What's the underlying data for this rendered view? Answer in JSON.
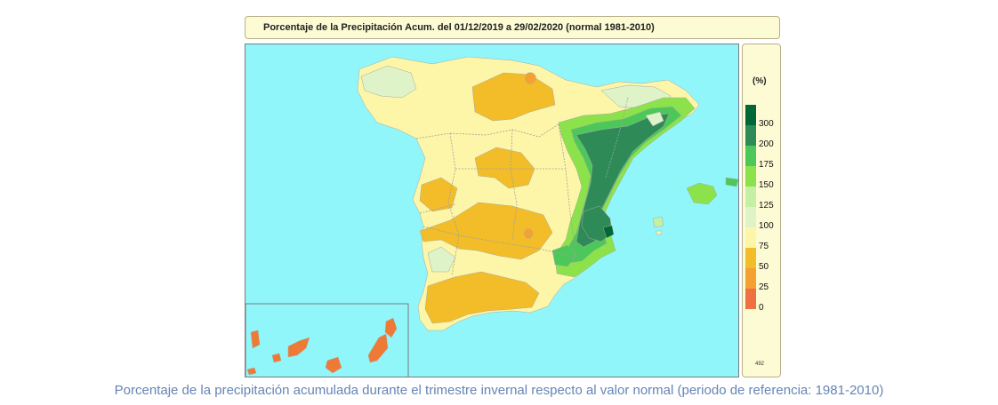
{
  "title": "Porcentaje de la Precipitación Acum. del 01/12/2019 a  29/02/2020  (normal 1981-2010)",
  "legend": {
    "unit": "(%)",
    "levels": [
      {
        "label": "300",
        "color": "#006837"
      },
      {
        "label": "200",
        "color": "#2e8b57"
      },
      {
        "label": "175",
        "color": "#4cc85a"
      },
      {
        "label": "150",
        "color": "#8ce24a"
      },
      {
        "label": "125",
        "color": "#c4f0a6"
      },
      {
        "label": "100",
        "color": "#dff3c9"
      },
      {
        "label": "75",
        "color": "#fdf6a8"
      },
      {
        "label": "50",
        "color": "#f2bd28"
      },
      {
        "label": "25",
        "color": "#f5a032"
      },
      {
        "label": "0",
        "color": "#ef7040"
      }
    ],
    "map_id": "492"
  },
  "colors": {
    "sea": "#91f6fa",
    "land_base": "#fdf6a8",
    "below_normal": "#f2bd28",
    "very_low": "#f5a032",
    "slightly_above": "#dff3c9",
    "above": "#c4f0a6",
    "well_above": "#8ce24a",
    "high": "#4cc85a",
    "very_high": "#2e8b57",
    "extreme": "#006837",
    "canary": "#ef7a35"
  },
  "caption": "Porcentaje de la precipitación acumulada durante el trimestre invernal respecto al valor normal (periodo de referencia: 1981-2010)"
}
